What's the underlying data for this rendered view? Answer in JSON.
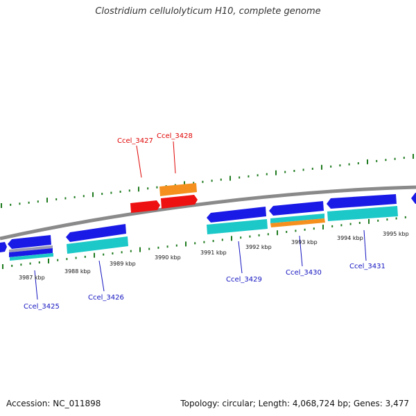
{
  "title": "Clostridium cellulolyticum H10, complete genome",
  "footer": {
    "accession": "Accession: NC_011898",
    "summary": "Topology: circular; Length: 4,068,724 bp; Genes: 3,477"
  },
  "colors": {
    "backbone": "#8a8a8a",
    "tick": "#1e7a1e",
    "forward_label": "#e00000",
    "reverse_label": "#1010c0",
    "cds_blue": "#1a1ae6",
    "gene_cyan": "#1cc8c8",
    "forward_red": "#ee1111",
    "forward_orange": "#f5901e"
  },
  "scale_ticks": [
    {
      "label": "3987 kbp"
    },
    {
      "label": "3988 kbp"
    },
    {
      "label": "3989 kbp"
    },
    {
      "label": "3990 kbp"
    },
    {
      "label": "3991 kbp"
    },
    {
      "label": "3992 kbp"
    },
    {
      "label": "3993 kbp"
    },
    {
      "label": "3994 kbp"
    },
    {
      "label": "3995 kbp"
    }
  ],
  "gene_labels": [
    {
      "name": "Ccel_3425",
      "strand": "reverse"
    },
    {
      "name": "Ccel_3426",
      "strand": "reverse"
    },
    {
      "name": "Ccel_3427",
      "strand": "forward"
    },
    {
      "name": "Ccel_3428",
      "strand": "forward"
    },
    {
      "name": "Ccel_3429",
      "strand": "reverse"
    },
    {
      "name": "Ccel_3430",
      "strand": "reverse"
    },
    {
      "name": "Ccel_3431",
      "strand": "reverse"
    }
  ]
}
